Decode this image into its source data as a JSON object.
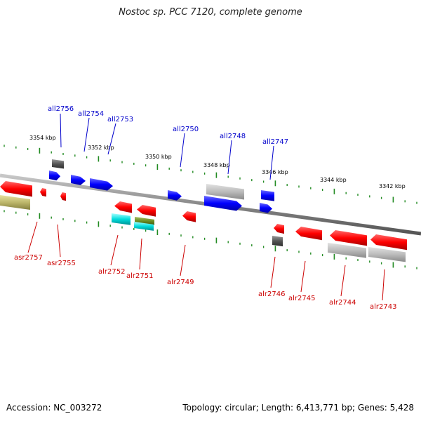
{
  "title": "Nostoc sp. PCC 7120, complete genome",
  "footer": {
    "accession": "Accession: NC_003272",
    "summary": "Topology: circular; Length: 6,413,771 bp; Genes: 5,428"
  },
  "colors": {
    "forward": "#0000ff",
    "reverse": "#ff0000",
    "backbone": "#888888",
    "ticks": "#228b22",
    "gray_feature": "#aaaaaa",
    "dark_feature": "#555555",
    "cyan_feature": "#00cccc",
    "olive_feature": "#6b8e23",
    "khaki_feature": "#b5b060"
  },
  "scale_ticks": [
    "3354 kbp",
    "3352 kbp",
    "3350 kbp",
    "3348 kbp",
    "3346 kbp",
    "3344 kbp",
    "3342 kbp"
  ],
  "forward_genes": [
    "all2756",
    "all2754",
    "all2753",
    "all2750",
    "all2748",
    "all2747"
  ],
  "reverse_genes": [
    "asr2757",
    "asr2755",
    "alr2752",
    "alr2751",
    "alr2749",
    "alr2746",
    "alr2745",
    "alr2744",
    "alr2743"
  ]
}
